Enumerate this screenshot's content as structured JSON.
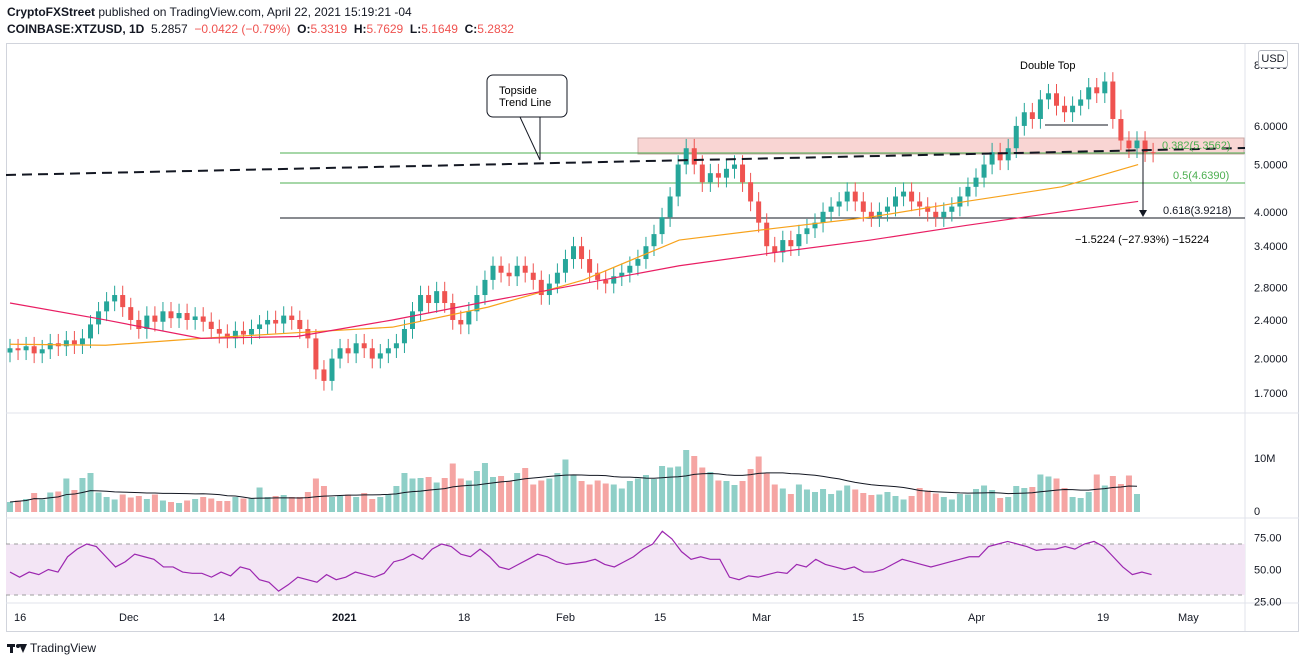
{
  "header": {
    "publisher": "CryptoFXStreet",
    "published_text": "published on TradingView.com, April 22, 2021 15:19:21 -04",
    "symbol": "COINBASE:XTZUSD, 1D",
    "last": "5.2857",
    "change": "−0.0422 (−0.79%)",
    "open_label": "O:",
    "open": "5.3319",
    "high_label": "H:",
    "high": "5.7629",
    "low_label": "L:",
    "low": "5.1649",
    "close_label": "C:",
    "close": "5.2832"
  },
  "footer": {
    "brand": "TradingView"
  },
  "currency": "USD",
  "colors": {
    "up": "#26a69a",
    "down": "#ef5350",
    "up_vol": "#8fcfc7",
    "down_vol": "#f5a5a3",
    "ma50": "#f7a21b",
    "ma200": "#e91e63",
    "rsi": "#9c27b0",
    "fib": "#4caf50"
  },
  "chart_data": {
    "type": "candlestick",
    "scale": "log",
    "price_ticks": [
      "8.0000",
      "6.0000",
      "5.0000",
      "4.0000",
      "3.4000",
      "2.8000",
      "2.4000",
      "2.0000",
      "1.7000"
    ],
    "volume_ticks": [
      "10M",
      "0"
    ],
    "rsi_ticks": [
      "75.00",
      "50.00",
      "25.00"
    ],
    "x_ticks": [
      "16",
      "Dec",
      "14",
      "2021",
      "18",
      "Feb",
      "15",
      "Mar",
      "15",
      "Apr",
      "19",
      "May"
    ],
    "annotations": {
      "topside": "Topside Trend Line",
      "double_top": "Double Top",
      "fib382": "0.382(5.3562)",
      "fib50": "0.5(4.6390)",
      "fib618": "0.618(3.9218)",
      "measure": "−1.5224 (−27.93%) −15224"
    },
    "closes": [
      2.1,
      2.08,
      2.12,
      2.05,
      2.09,
      2.15,
      2.12,
      2.18,
      2.14,
      2.2,
      2.35,
      2.5,
      2.62,
      2.7,
      2.55,
      2.4,
      2.3,
      2.45,
      2.38,
      2.5,
      2.42,
      2.48,
      2.4,
      2.44,
      2.38,
      2.3,
      2.25,
      2.2,
      2.28,
      2.24,
      2.3,
      2.35,
      2.4,
      2.36,
      2.45,
      2.4,
      2.3,
      2.2,
      1.9,
      1.8,
      2.0,
      2.1,
      2.05,
      2.15,
      2.1,
      2.0,
      2.05,
      2.1,
      2.15,
      2.3,
      2.5,
      2.7,
      2.6,
      2.75,
      2.6,
      2.4,
      2.35,
      2.5,
      2.7,
      2.9,
      3.1,
      3.0,
      2.95,
      3.1,
      3.0,
      2.9,
      2.7,
      2.85,
      3.0,
      3.2,
      3.4,
      3.2,
      3.0,
      2.9,
      2.85,
      2.95,
      3.0,
      3.1,
      3.2,
      3.4,
      3.6,
      3.9,
      4.3,
      5.0,
      5.4,
      5.0,
      4.6,
      4.8,
      4.7,
      4.9,
      5.0,
      4.6,
      4.2,
      3.8,
      3.4,
      3.3,
      3.5,
      3.4,
      3.6,
      3.7,
      3.8,
      4.0,
      4.1,
      4.2,
      4.4,
      4.2,
      4.0,
      3.9,
      4.0,
      4.1,
      4.3,
      4.4,
      4.2,
      4.1,
      4.0,
      3.9,
      4.0,
      4.1,
      4.3,
      4.5,
      4.7,
      5.0,
      5.3,
      5.1,
      5.4,
      6.0,
      6.4,
      6.2,
      6.8,
      7.0,
      6.6,
      6.4,
      6.6,
      6.8,
      7.2,
      7.0,
      7.4,
      6.2,
      5.6,
      5.4,
      5.6,
      5.3,
      5.29
    ],
    "volumes": [
      2.0,
      2.3,
      2.6,
      3.8,
      2.5,
      3.9,
      4.1,
      6.7,
      4.4,
      6.8,
      7.8,
      3.9,
      3.0,
      2.5,
      3.5,
      2.9,
      3.2,
      2.6,
      3.5,
      2.3,
      2.0,
      1.8,
      2.3,
      2.6,
      3.0,
      2.7,
      2.2,
      2.2,
      3.0,
      2.7,
      2.8,
      4.9,
      3.0,
      3.2,
      3.4,
      3.0,
      3.0,
      4.0,
      6.7,
      5.2,
      3.0,
      3.2,
      3.5,
      3.0,
      3.8,
      2.6,
      3.0,
      3.5,
      5.2,
      7.8,
      6.7,
      6.8,
      7.0,
      5.9,
      6.8,
      9.7,
      6.7,
      6.3,
      8.2,
      9.8,
      7.0,
      7.2,
      6.2,
      7.8,
      8.8,
      5.5,
      6.3,
      6.7,
      7.8,
      10.5,
      7.4,
      6.2,
      5.5,
      6.3,
      5.7,
      5.5,
      4.7,
      6.2,
      6.7,
      7.4,
      6.6,
      9.2,
      8.9,
      9.1,
      12.4,
      11.2,
      8.9,
      8.0,
      6.3,
      6.2,
      5.4,
      6.2,
      8.6,
      11.1,
      7.7,
      5.5,
      4.7,
      3.6,
      5.5,
      4.5,
      4.0,
      4.6,
      3.6,
      4.3,
      5.3,
      4.5,
      3.8,
      3.4,
      3.5,
      4.0,
      3.2,
      2.5,
      3.2,
      4.8,
      4.3,
      3.7,
      3.0,
      2.5,
      3.6,
      3.5,
      4.6,
      5.3,
      4.4,
      2.8,
      3.0,
      5.2,
      4.8,
      5.0,
      7.5,
      7.1,
      6.7,
      4.8,
      3.0,
      2.8,
      4.0,
      7.5,
      5.3,
      7.2,
      5.6,
      7.3,
      3.6
    ],
    "rsi": [
      48,
      44,
      48,
      46,
      50,
      48,
      60,
      66,
      70,
      68,
      60,
      52,
      56,
      62,
      60,
      58,
      52,
      52,
      48,
      47,
      47,
      44,
      48,
      45,
      52,
      50,
      42,
      40,
      33,
      38,
      44,
      42,
      40,
      46,
      42,
      44,
      48,
      46,
      44,
      47,
      56,
      58,
      62,
      58,
      66,
      70,
      68,
      62,
      60,
      66,
      60,
      52,
      50,
      54,
      58,
      62,
      60,
      56,
      54,
      55,
      56,
      58,
      54,
      52,
      56,
      60,
      66,
      70,
      80,
      74,
      64,
      58,
      60,
      58,
      58,
      44,
      42,
      45,
      44,
      46,
      48,
      47,
      54,
      52,
      58,
      54,
      52,
      50,
      52,
      48,
      48,
      50,
      54,
      58,
      56,
      54,
      52,
      54,
      56,
      58,
      60,
      60,
      68,
      70,
      72,
      70,
      68,
      65,
      66,
      66,
      68,
      66,
      70,
      72,
      68,
      60,
      52,
      46,
      48,
      46
    ],
    "ma50_points": [
      [
        0,
        2.14
      ],
      [
        20,
        2.13
      ],
      [
        40,
        2.2
      ],
      [
        60,
        2.26
      ],
      [
        80,
        2.32
      ],
      [
        100,
        2.55
      ],
      [
        120,
        2.9
      ],
      [
        140,
        3.5
      ],
      [
        160,
        3.7
      ],
      [
        180,
        3.9
      ],
      [
        200,
        4.2
      ],
      [
        220,
        4.5
      ],
      [
        236,
        5.0
      ]
    ],
    "ma200_points": [
      [
        0,
        2.6
      ],
      [
        20,
        2.4
      ],
      [
        40,
        2.2
      ],
      [
        60,
        2.22
      ],
      [
        80,
        2.4
      ],
      [
        100,
        2.62
      ],
      [
        120,
        2.85
      ],
      [
        140,
        3.1
      ],
      [
        160,
        3.3
      ],
      [
        180,
        3.5
      ],
      [
        200,
        3.75
      ],
      [
        220,
        4.0
      ],
      [
        236,
        4.2
      ]
    ]
  }
}
